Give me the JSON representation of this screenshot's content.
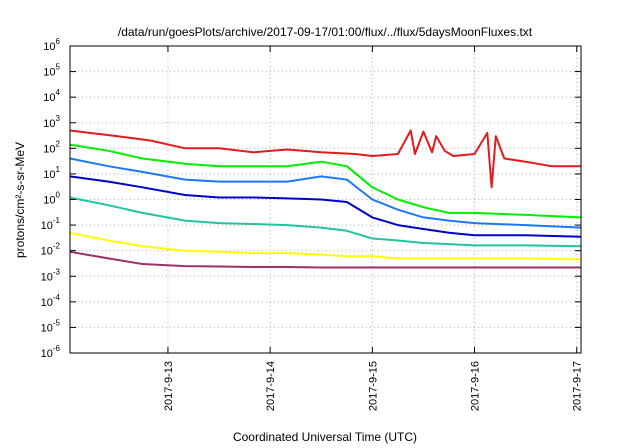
{
  "chart_data": {
    "type": "line",
    "title": "/data/run/goesPlots/archive/2017-09-17/01:00/flux/../flux/5daysMoonFluxes.txt",
    "xlabel": "Coordinated Universal Time (UTC)",
    "ylabel": "protons/cm²-s-sr-MeV",
    "yscale": "log",
    "ylim": [
      1e-06,
      1000000.0
    ],
    "xlim": [
      "2017-09-12T01:00",
      "2017-09-17T01:00"
    ],
    "grid": true,
    "legend": "none",
    "x_ticks": [
      {
        "date": "2017-09-13",
        "label": "2017-9-13"
      },
      {
        "date": "2017-09-14",
        "label": "2017-9-14"
      },
      {
        "date": "2017-09-15",
        "label": "2017-9-15"
      },
      {
        "date": "2017-09-16",
        "label": "2017-9-16"
      },
      {
        "date": "2017-09-17",
        "label": "2017-9-17"
      }
    ],
    "y_ticks": [
      {
        "exp": -6,
        "label": "10-6"
      },
      {
        "exp": -5,
        "label": "10-5"
      },
      {
        "exp": -4,
        "label": "10-4"
      },
      {
        "exp": -3,
        "label": "10-3"
      },
      {
        "exp": -2,
        "label": "10-2"
      },
      {
        "exp": -1,
        "label": "10-1"
      },
      {
        "exp": 0,
        "label": "100"
      },
      {
        "exp": 1,
        "label": "101"
      },
      {
        "exp": 2,
        "label": "102"
      },
      {
        "exp": 3,
        "label": "103"
      },
      {
        "exp": 4,
        "label": "104"
      },
      {
        "exp": 5,
        "label": "105"
      },
      {
        "exp": 6,
        "label": "106"
      }
    ],
    "series": [
      {
        "color": "#e41a1c",
        "x": [
          "2017-09-12T01:00",
          "2017-09-12T12:00",
          "2017-09-12T20:00",
          "2017-09-13T04:00",
          "2017-09-13T12:00",
          "2017-09-13T20:00",
          "2017-09-14T04:00",
          "2017-09-14T12:00",
          "2017-09-14T20:00",
          "2017-09-15T00:00",
          "2017-09-15T06:00",
          "2017-09-15T09:00",
          "2017-09-15T10:00",
          "2017-09-15T12:00",
          "2017-09-15T14:00",
          "2017-09-15T15:00",
          "2017-09-15T17:00",
          "2017-09-15T19:00",
          "2017-09-16T00:00",
          "2017-09-16T03:00",
          "2017-09-16T04:00",
          "2017-09-16T05:00",
          "2017-09-16T07:00",
          "2017-09-16T12:00",
          "2017-09-16T18:00",
          "2017-09-17T01:00"
        ],
        "y": [
          500,
          300,
          200,
          100,
          100,
          70,
          90,
          70,
          60,
          50,
          60,
          500,
          60,
          450,
          70,
          300,
          80,
          50,
          60,
          400,
          3,
          300,
          40,
          30,
          20,
          20
        ]
      },
      {
        "color": "#00ee00",
        "x": [
          "2017-09-12T01:00",
          "2017-09-12T10:00",
          "2017-09-12T18:00",
          "2017-09-13T04:00",
          "2017-09-13T12:00",
          "2017-09-13T20:00",
          "2017-09-14T04:00",
          "2017-09-14T12:00",
          "2017-09-14T18:00",
          "2017-09-15T00:00",
          "2017-09-15T06:00",
          "2017-09-15T12:00",
          "2017-09-15T18:00",
          "2017-09-16T00:00",
          "2017-09-16T12:00",
          "2017-09-17T01:00"
        ],
        "y": [
          140,
          80,
          40,
          25,
          20,
          20,
          20,
          30,
          20,
          3,
          1,
          0.5,
          0.3,
          0.3,
          0.25,
          0.2
        ]
      },
      {
        "color": "#1e78ff",
        "x": [
          "2017-09-12T01:00",
          "2017-09-12T10:00",
          "2017-09-12T18:00",
          "2017-09-13T04:00",
          "2017-09-13T12:00",
          "2017-09-13T20:00",
          "2017-09-14T04:00",
          "2017-09-14T12:00",
          "2017-09-14T18:00",
          "2017-09-15T00:00",
          "2017-09-15T06:00",
          "2017-09-15T12:00",
          "2017-09-15T18:00",
          "2017-09-16T00:00",
          "2017-09-16T12:00",
          "2017-09-17T01:00"
        ],
        "y": [
          40,
          20,
          12,
          6,
          5,
          5,
          5,
          8,
          6,
          1,
          0.4,
          0.2,
          0.15,
          0.12,
          0.1,
          0.08
        ]
      },
      {
        "color": "#0000cc",
        "x": [
          "2017-09-12T01:00",
          "2017-09-12T10:00",
          "2017-09-12T18:00",
          "2017-09-13T04:00",
          "2017-09-13T12:00",
          "2017-09-13T20:00",
          "2017-09-14T04:00",
          "2017-09-14T12:00",
          "2017-09-14T18:00",
          "2017-09-15T00:00",
          "2017-09-15T06:00",
          "2017-09-15T12:00",
          "2017-09-15T18:00",
          "2017-09-16T00:00",
          "2017-09-16T12:00",
          "2017-09-17T01:00"
        ],
        "y": [
          8,
          5,
          3,
          1.5,
          1.2,
          1.2,
          1.1,
          1.0,
          0.8,
          0.2,
          0.1,
          0.07,
          0.05,
          0.04,
          0.04,
          0.035
        ]
      },
      {
        "color": "#20c4a0",
        "x": [
          "2017-09-12T01:00",
          "2017-09-12T10:00",
          "2017-09-12T18:00",
          "2017-09-13T04:00",
          "2017-09-13T12:00",
          "2017-09-13T20:00",
          "2017-09-14T04:00",
          "2017-09-14T12:00",
          "2017-09-14T18:00",
          "2017-09-15T00:00",
          "2017-09-15T06:00",
          "2017-09-15T12:00",
          "2017-09-15T18:00",
          "2017-09-16T00:00",
          "2017-09-16T12:00",
          "2017-09-17T01:00"
        ],
        "y": [
          1.2,
          0.6,
          0.3,
          0.15,
          0.12,
          0.11,
          0.1,
          0.08,
          0.06,
          0.03,
          0.025,
          0.02,
          0.018,
          0.016,
          0.016,
          0.015
        ]
      },
      {
        "color": "#ffff00",
        "x": [
          "2017-09-12T01:00",
          "2017-09-12T10:00",
          "2017-09-12T18:00",
          "2017-09-13T04:00",
          "2017-09-13T12:00",
          "2017-09-13T20:00",
          "2017-09-14T04:00",
          "2017-09-14T12:00",
          "2017-09-14T18:00",
          "2017-09-15T00:00",
          "2017-09-15T06:00",
          "2017-09-15T12:00",
          "2017-09-15T18:00",
          "2017-09-16T00:00",
          "2017-09-16T12:00",
          "2017-09-17T01:00"
        ],
        "y": [
          0.05,
          0.025,
          0.015,
          0.01,
          0.009,
          0.008,
          0.008,
          0.007,
          0.006,
          0.006,
          0.005,
          0.005,
          0.005,
          0.005,
          0.005,
          0.0045
        ]
      },
      {
        "color": "#993366",
        "x": [
          "2017-09-12T01:00",
          "2017-09-12T10:00",
          "2017-09-12T18:00",
          "2017-09-13T04:00",
          "2017-09-13T12:00",
          "2017-09-13T20:00",
          "2017-09-14T04:00",
          "2017-09-14T12:00",
          "2017-09-14T18:00",
          "2017-09-15T00:00",
          "2017-09-15T06:00",
          "2017-09-15T12:00",
          "2017-09-15T18:00",
          "2017-09-16T00:00",
          "2017-09-16T12:00",
          "2017-09-17T01:00"
        ],
        "y": [
          0.009,
          0.005,
          0.003,
          0.0025,
          0.0024,
          0.0023,
          0.0023,
          0.0022,
          0.0022,
          0.0022,
          0.0022,
          0.0022,
          0.0022,
          0.0022,
          0.0022,
          0.0022
        ]
      }
    ]
  }
}
